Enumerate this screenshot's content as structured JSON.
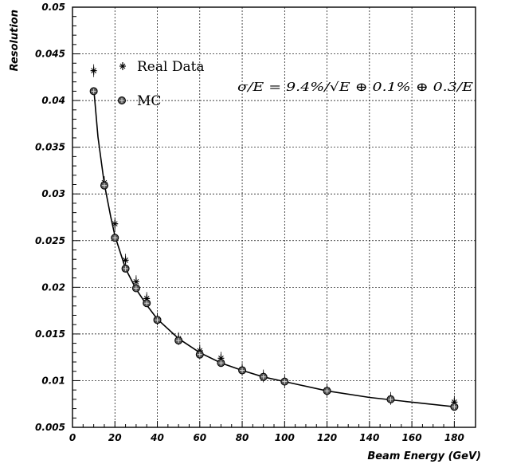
{
  "chart_data": {
    "type": "scatter",
    "xlabel": "Beam Energy (GeV)",
    "ylabel": "Resolution",
    "xlim": [
      0,
      190
    ],
    "ylim": [
      0.005,
      0.05
    ],
    "x_ticks": [
      "0",
      "20",
      "40",
      "60",
      "80",
      "100",
      "120",
      "140",
      "160",
      "180"
    ],
    "y_ticks": [
      "0.005",
      "0.01",
      "0.015",
      "0.02",
      "0.025",
      "0.03",
      "0.035",
      "0.04",
      "0.045",
      "0.05"
    ],
    "grid": true,
    "legend_position": "top-left",
    "annotation": "σ/E = 9.4%/√E ⊕ 0.1% ⊕ 0.3/E",
    "series": [
      {
        "name": "Real Data",
        "marker": "star",
        "x": [
          10,
          15,
          20,
          25,
          30,
          35,
          40,
          50,
          60,
          70,
          80,
          90,
          100,
          120,
          150,
          180
        ],
        "y": [
          0.0432,
          0.0312,
          0.0268,
          0.0229,
          0.0206,
          0.0188,
          0.0166,
          0.0145,
          0.0132,
          0.0124,
          0.0112,
          0.0105,
          0.0099,
          0.009,
          0.0081,
          0.0077
        ]
      },
      {
        "name": "MC",
        "marker": "circle",
        "x": [
          10,
          15,
          20,
          25,
          30,
          35,
          40,
          50,
          60,
          70,
          80,
          90,
          100,
          120,
          150,
          180
        ],
        "y": [
          0.041,
          0.0309,
          0.0253,
          0.022,
          0.0199,
          0.0183,
          0.0165,
          0.0143,
          0.0128,
          0.0119,
          0.0111,
          0.0104,
          0.0099,
          0.0089,
          0.008,
          0.0072
        ]
      }
    ],
    "fit_curve": {
      "x": [
        10,
        12,
        15,
        18,
        20,
        25,
        30,
        35,
        40,
        50,
        60,
        70,
        80,
        90,
        100,
        120,
        140,
        160,
        180
      ],
      "y": [
        0.0414,
        0.0361,
        0.0311,
        0.0276,
        0.0255,
        0.022,
        0.0198,
        0.0181,
        0.0166,
        0.0145,
        0.013,
        0.0119,
        0.0111,
        0.0104,
        0.0099,
        0.0089,
        0.0082,
        0.0077,
        0.0072
      ]
    }
  }
}
